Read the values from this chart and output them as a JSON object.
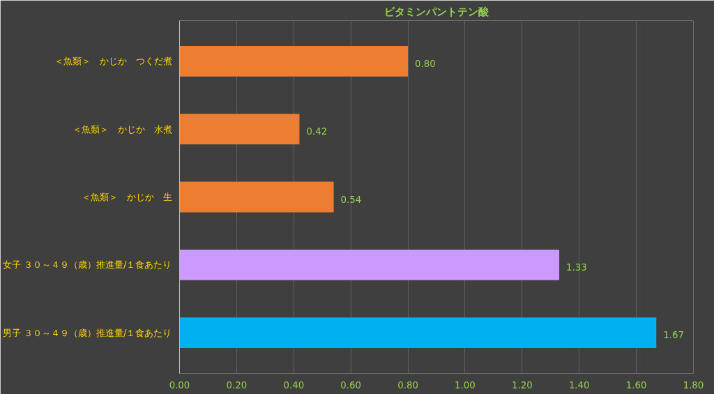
{
  "chart_data": {
    "type": "bar",
    "orientation": "horizontal",
    "title": "ビタミンパントテン酸",
    "categories": [
      "＜魚類＞　かじか　つくだ煮",
      "＜魚類＞　かじか　水煮",
      "＜魚類＞　かじか　生",
      "女子 ３０～４９（歳）推進量/１食あたり",
      "男子 ３０～４９（歳）推進量/１食あたり"
    ],
    "values": [
      0.8,
      0.42,
      0.54,
      1.33,
      1.67
    ],
    "colors": [
      "#ed7d31",
      "#ed7d31",
      "#ed7d31",
      "#cc99ff",
      "#00b0f0"
    ],
    "value_labels": [
      "0.80",
      "0.42",
      "0.54",
      "1.33",
      "1.67"
    ],
    "xlim": [
      0,
      1.8
    ],
    "xticks": [
      {
        "value": 0,
        "label": "0.00"
      },
      {
        "value": 0.2,
        "label": "0.20"
      },
      {
        "value": 0.4,
        "label": "0.40"
      },
      {
        "value": 0.6,
        "label": "0.60"
      },
      {
        "value": 0.8,
        "label": "0.80"
      },
      {
        "value": 1.0,
        "label": "1.00"
      },
      {
        "value": 1.2,
        "label": "1.20"
      },
      {
        "value": 1.4,
        "label": "1.40"
      },
      {
        "value": 1.6,
        "label": "1.60"
      },
      {
        "value": 1.8,
        "label": "1.80"
      }
    ],
    "grid": "x"
  }
}
